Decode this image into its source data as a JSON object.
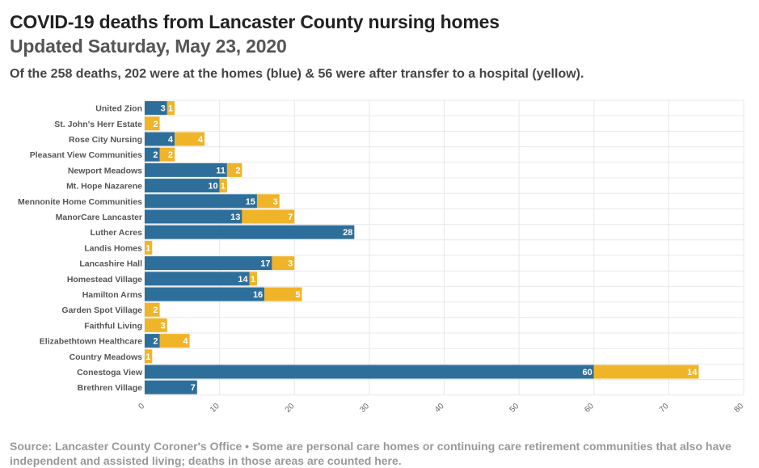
{
  "header": {
    "title": "COVID-19 deaths from Lancaster County nursing homes",
    "subtitle": "Updated Saturday, May 23, 2020",
    "description": "Of the 258 deaths, 202 were at the homes (blue) & 56 were after transfer to a hospital (yellow)."
  },
  "footer": {
    "source": "Source: Lancaster County Coroner's Office • Some are personal care homes or continuing care retirement communities that also have independent and assisted living; deaths in those areas are counted here."
  },
  "colors": {
    "homes": "#2e6e9b",
    "hospital": "#f0b428",
    "grid": "#e8e8e8"
  },
  "chart_data": {
    "type": "bar",
    "orientation": "horizontal",
    "stacked": true,
    "categories": [
      "United Zion",
      "St. John's Herr Estate",
      "Rose City Nursing",
      "Pleasant View Communities",
      "Newport Meadows",
      "Mt. Hope Nazarene",
      "Mennonite Home Communities",
      "ManorCare Lancaster",
      "Luther Acres",
      "Landis Homes",
      "Lancashire Hall",
      "Homestead Village",
      "Hamilton Arms",
      "Garden Spot Village",
      "Faithful Living",
      "Elizabethtown Healthcare",
      "Country Meadows",
      "Conestoga View",
      "Brethren Village"
    ],
    "series": [
      {
        "name": "At the homes (blue)",
        "values": [
          3,
          0,
          4,
          2,
          11,
          10,
          15,
          13,
          28,
          0,
          17,
          14,
          16,
          0,
          0,
          2,
          0,
          60,
          7
        ]
      },
      {
        "name": "After transfer to a hospital (yellow)",
        "values": [
          1,
          2,
          4,
          2,
          2,
          1,
          3,
          7,
          0,
          1,
          3,
          1,
          5,
          2,
          3,
          4,
          1,
          14,
          0
        ]
      }
    ],
    "xlim": [
      0,
      80
    ],
    "xticks": [
      0,
      10,
      20,
      30,
      40,
      50,
      60,
      70,
      80
    ],
    "grid": true
  }
}
